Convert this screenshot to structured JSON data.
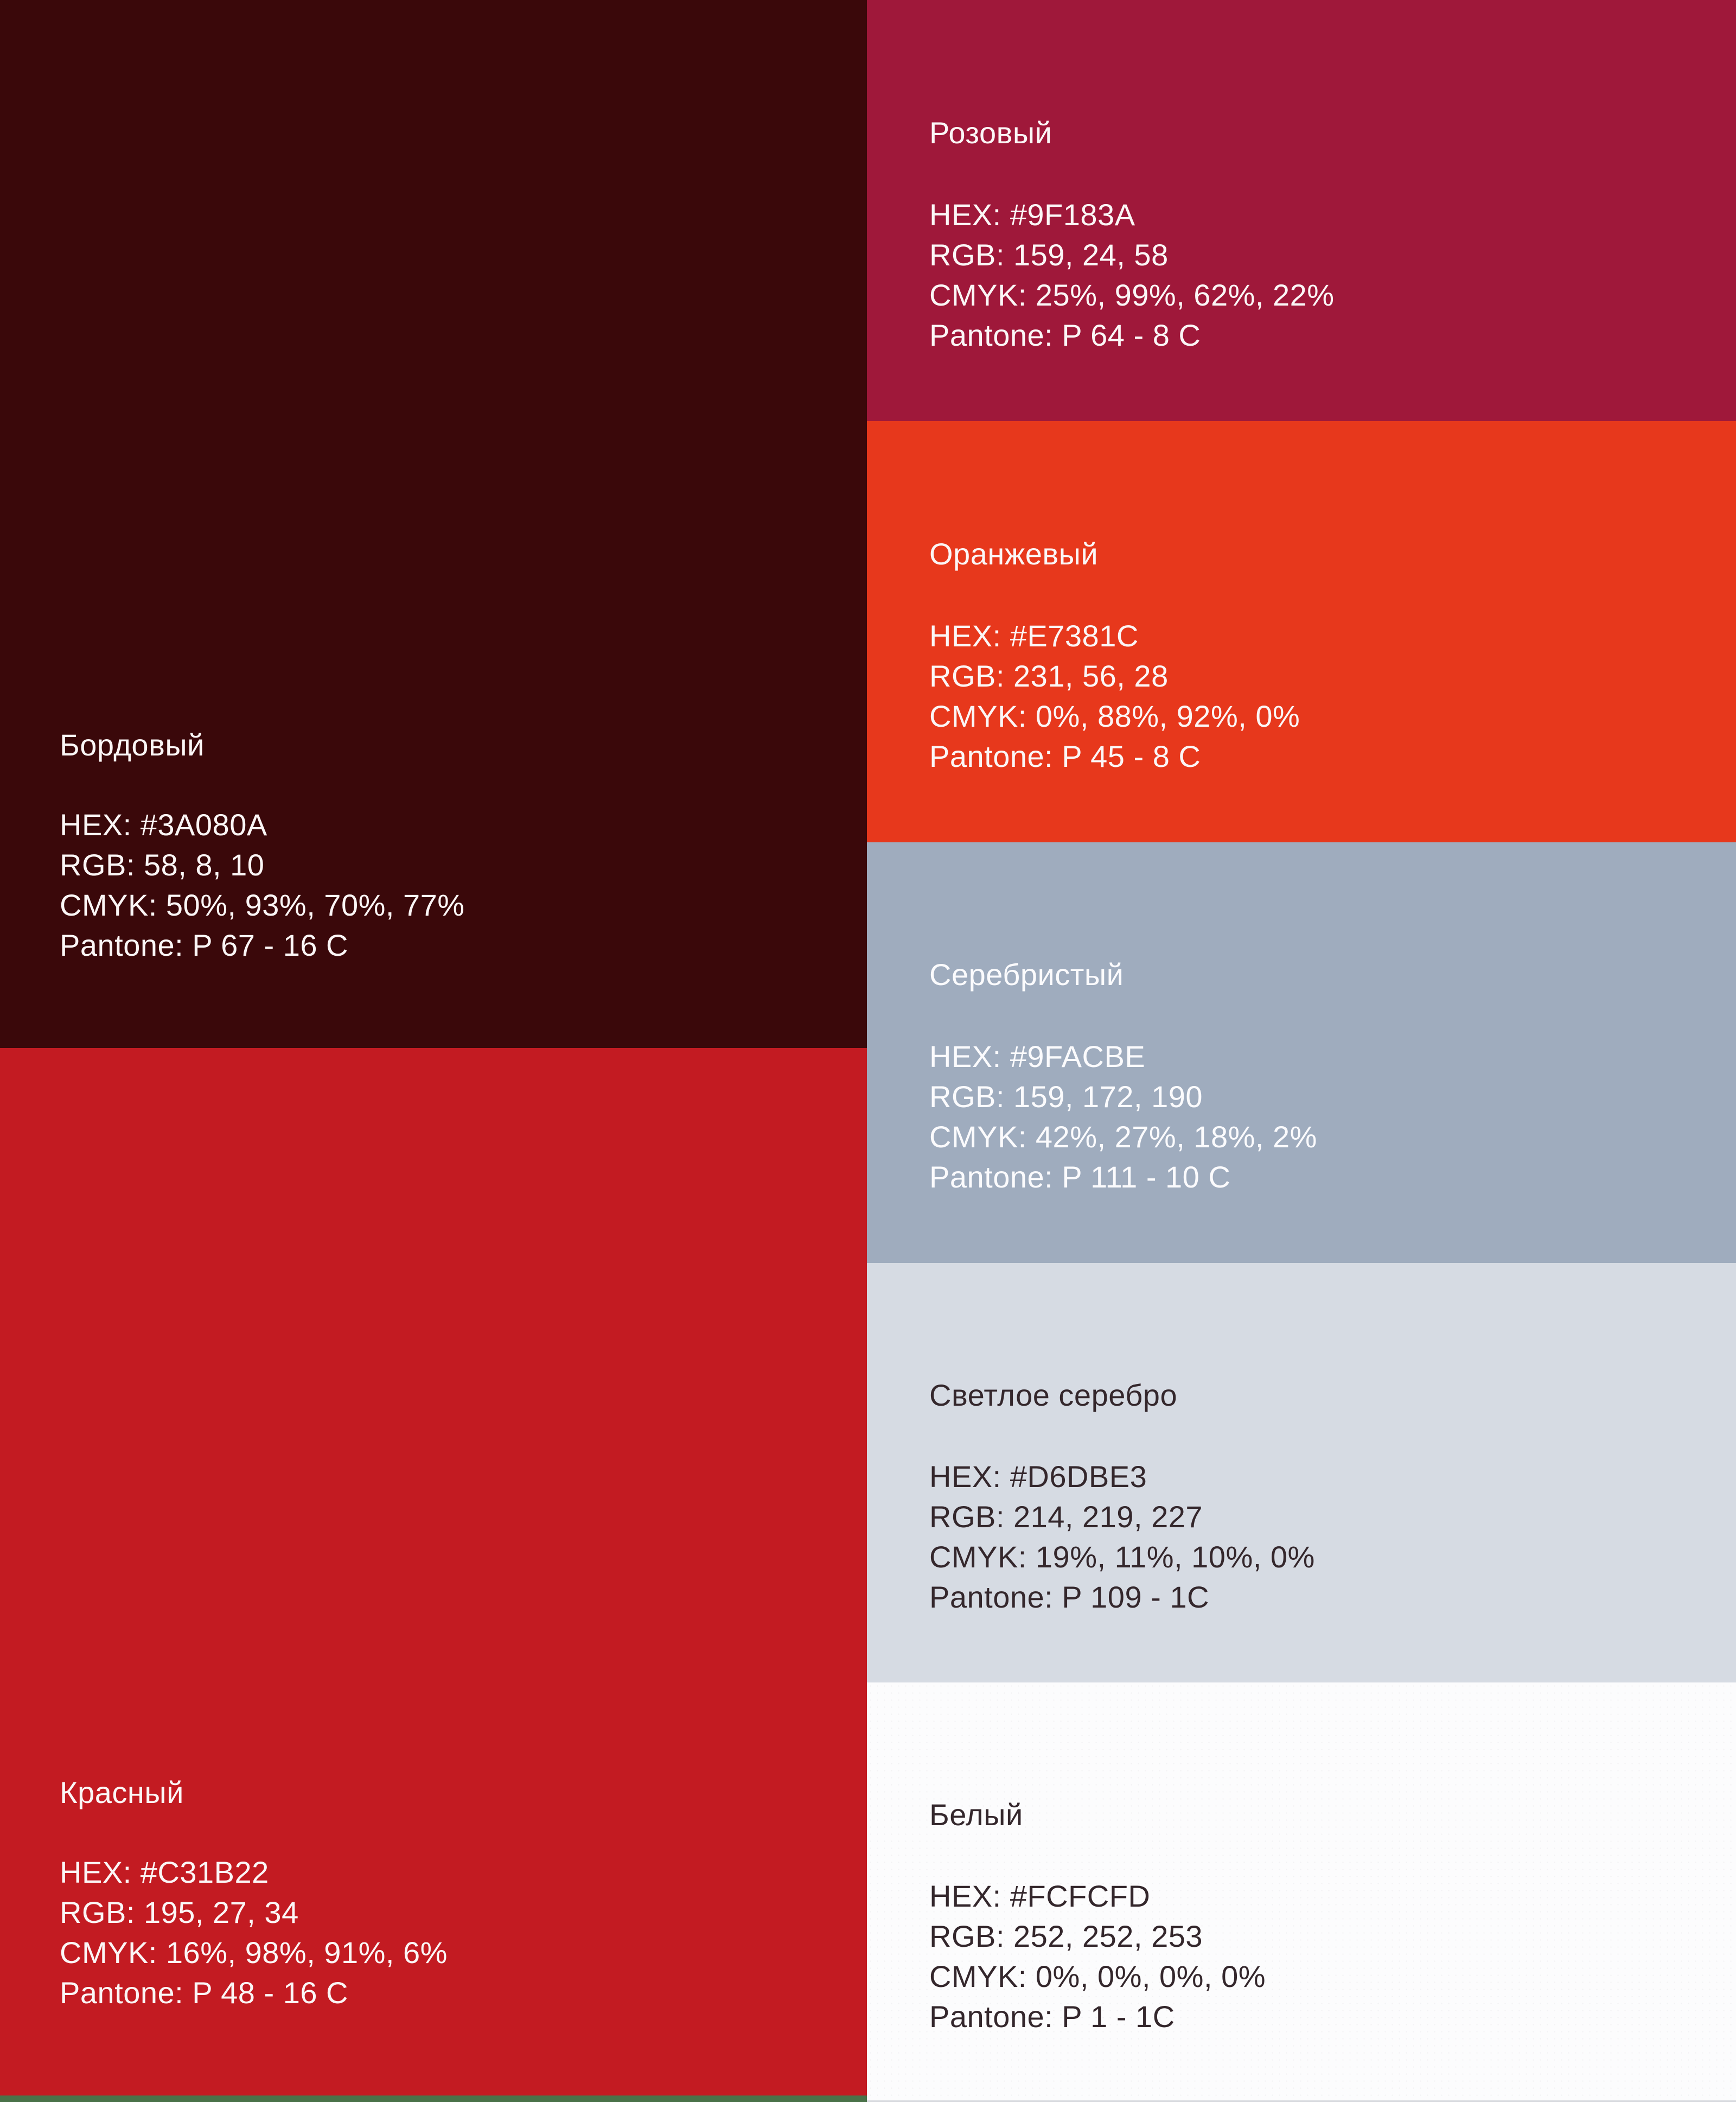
{
  "palette": {
    "left": [
      {
        "name": "Бордовый",
        "hex": "HEX: #3A080A",
        "rgb": "RGB: 58, 8, 10",
        "cmyk": "CMYK: 50%, 93%, 70%, 77%",
        "pantone": "Pantone: P 67 - 16 C",
        "swatch_color": "#3A080A",
        "text_color": "#FBF6F6"
      },
      {
        "name": "Красный",
        "hex": "HEX: #C31B22",
        "rgb": "RGB: 195, 27, 34",
        "cmyk": "CMYK: 16%, 98%, 91%, 6%",
        "pantone": "Pantone: P 48 - 16 C",
        "swatch_color": "#C31B22",
        "text_color": "#FBF6F6"
      }
    ],
    "right": [
      {
        "name": "Розовый",
        "hex": "HEX: #9F183A",
        "rgb": "RGB: 159, 24, 58",
        "cmyk": "CMYK: 25%, 99%, 62%, 22%",
        "pantone": "Pantone: P 64 - 8 C",
        "swatch_color": "#9F183A",
        "text_color": "#FBF6F6"
      },
      {
        "name": "Оранжевый",
        "hex": "HEX: #E7381C",
        "rgb": "RGB: 231, 56, 28",
        "cmyk": "CMYK: 0%, 88%, 92%, 0%",
        "pantone": "Pantone: P 45 - 8 C",
        "swatch_color": "#E7381C",
        "text_color": "#FBF6F6"
      },
      {
        "name": "Серебристый",
        "hex": "HEX: #9FACBE",
        "rgb": "RGB: 159, 172, 190",
        "cmyk": "CMYK: 42%, 27%, 18%, 2%",
        "pantone": "Pantone: P 111 - 10 C",
        "swatch_color": "#9FACBE",
        "text_color": "#FBFBFD"
      },
      {
        "name": "Светлое серебро",
        "hex": "HEX: #D6DBE3",
        "rgb": "RGB: 214, 219, 227",
        "cmyk": "CMYK: 19%, 11%, 10%, 0%",
        "pantone": "Pantone: P 109 - 1C",
        "swatch_color": "#D6DBE3",
        "text_color": "#34272C"
      },
      {
        "name": "Белый",
        "hex": "HEX: #FCFCFD",
        "rgb": "RGB: 252, 252, 253",
        "cmyk": "CMYK: 0%, 0%, 0%, 0%",
        "pantone": "Pantone: P 1 - 1C",
        "swatch_color": "#FCFCFD",
        "text_color": "#34272C"
      }
    ],
    "bottom_strip_color": "#4A7249",
    "bottom_edge_color": "#D7D9DE"
  }
}
